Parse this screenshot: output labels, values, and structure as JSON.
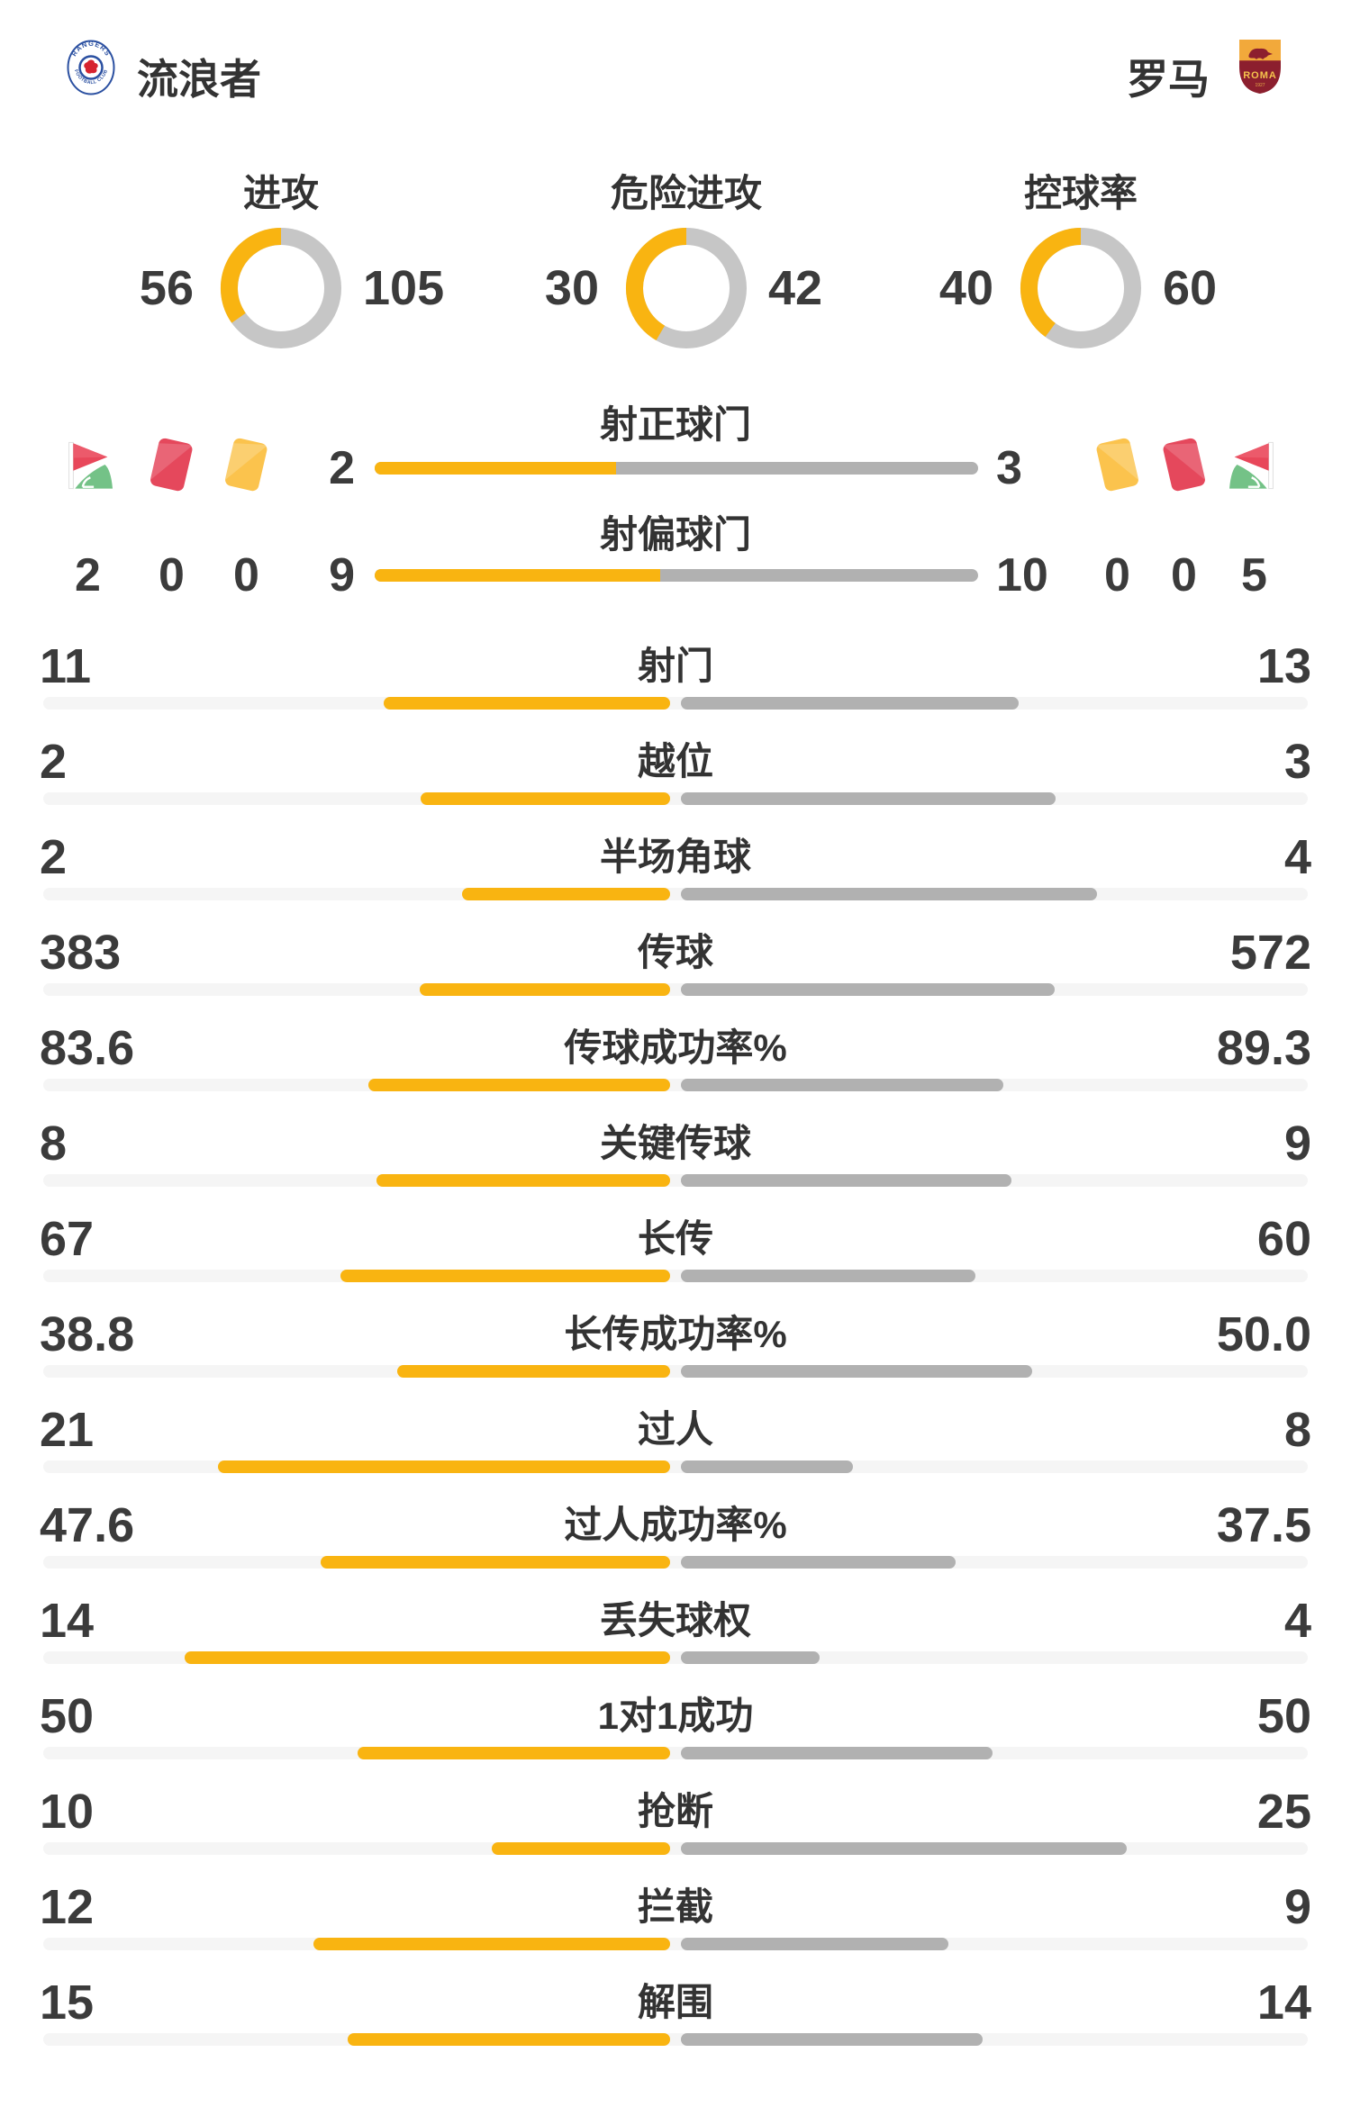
{
  "header": {
    "home": {
      "name": "流浪者"
    },
    "away": {
      "name": "罗马"
    }
  },
  "donuts": [
    {
      "title": "进攻",
      "home": "56",
      "away": "105"
    },
    {
      "title": "危险进攻",
      "home": "30",
      "away": "42"
    },
    {
      "title": "控球率",
      "home": "40",
      "away": "60"
    }
  ],
  "shot_rows": [
    {
      "title": "射正球门",
      "home": "2",
      "away": "3"
    },
    {
      "title": "射偏球门",
      "home": "9",
      "away": "10"
    }
  ],
  "discipline": {
    "home": {
      "corner": "2",
      "red": "0",
      "yellow": "0"
    },
    "away": {
      "yellow": "0",
      "red": "0",
      "corner": "5"
    }
  },
  "stats": [
    {
      "label": "射门",
      "home": "11",
      "away": "13"
    },
    {
      "label": "越位",
      "home": "2",
      "away": "3"
    },
    {
      "label": "半场角球",
      "home": "2",
      "away": "4"
    },
    {
      "label": "传球",
      "home": "383",
      "away": "572"
    },
    {
      "label": "传球成功率%",
      "home": "83.6",
      "away": "89.3"
    },
    {
      "label": "关键传球",
      "home": "8",
      "away": "9"
    },
    {
      "label": "长传",
      "home": "67",
      "away": "60"
    },
    {
      "label": "长传成功率%",
      "home": "38.8",
      "away": "50.0"
    },
    {
      "label": "过人",
      "home": "21",
      "away": "8"
    },
    {
      "label": "过人成功率%",
      "home": "47.6",
      "away": "37.5"
    },
    {
      "label": "丢失球权",
      "home": "14",
      "away": "4"
    },
    {
      "label": "1对1成功",
      "home": "50",
      "away": "50"
    },
    {
      "label": "抢断",
      "home": "10",
      "away": "25"
    },
    {
      "label": "拦截",
      "home": "12",
      "away": "9"
    },
    {
      "label": "解围",
      "home": "15",
      "away": "14"
    }
  ],
  "colors": {
    "home_bar": "#F9B411",
    "away_bar": "#B1B1B1",
    "donut_away": "#C6C6C6",
    "track": "#F5F5F5",
    "card_red": "#E5485C",
    "card_yellow": "#FBC34D",
    "flag_red": "#E8475A",
    "flag_green": "#74C287",
    "rangers_blue": "#2B50A1",
    "roma_maroon": "#8C1F2E",
    "roma_gold": "#F2A93B",
    "roma_text_gold": "#F5C34D"
  }
}
